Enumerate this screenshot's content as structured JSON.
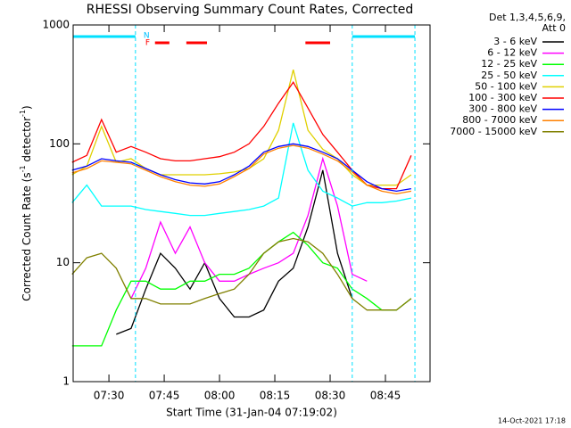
{
  "chart_data": {
    "type": "line",
    "title": "RHESSI Observing Summary Count Rates, Corrected",
    "ylabel": [
      "Corrected Count Rate (s",
      "-1",
      " detector",
      "-1",
      ")"
    ],
    "xlabel": "Start Time (31-Jan-04 07:19:02)",
    "footer": "14-Oct-2021 17:18",
    "legend_title": [
      "Det 1,3,4,5,6,9,",
      "Att 0"
    ],
    "log_y": true,
    "ylim": [
      1,
      1000
    ],
    "yticks": [
      1,
      10,
      100,
      1000
    ],
    "xlim": [
      20.3,
      117.1
    ],
    "xticks": [
      {
        "value": 30,
        "label": "07:30"
      },
      {
        "value": 45,
        "label": "07:45"
      },
      {
        "value": 60,
        "label": "08:00"
      },
      {
        "value": 75,
        "label": "08:15"
      },
      {
        "value": 90,
        "label": "08:30"
      },
      {
        "value": 105,
        "label": "08:45"
      }
    ],
    "night_label": "N",
    "flare_label": "F",
    "night_intervals": [
      [
        20.3,
        37.2
      ],
      [
        96,
        113
      ]
    ],
    "flare_intervals": [
      [
        42.5,
        46.4
      ],
      [
        51,
        56.6
      ],
      [
        83.3,
        90
      ]
    ],
    "x": [
      20,
      24,
      28,
      32,
      36,
      40,
      44,
      48,
      52,
      56,
      60,
      64,
      68,
      72,
      76,
      80,
      84,
      88,
      92,
      96,
      100,
      104,
      108,
      112
    ],
    "series": [
      {
        "name": "3 - 6 keV",
        "color": "#000000",
        "values": [
          null,
          null,
          null,
          2.5,
          2.8,
          6,
          12,
          9,
          6,
          10,
          5,
          3.5,
          3.5,
          4,
          7,
          9,
          20,
          60,
          12,
          5,
          null,
          null,
          null,
          null
        ]
      },
      {
        "name": "6 - 12 keV",
        "color": "#ff00ff",
        "values": [
          null,
          null,
          null,
          null,
          5,
          9,
          22,
          12,
          20,
          10,
          7,
          7,
          8,
          9,
          10,
          12,
          25,
          75,
          30,
          8,
          7,
          null,
          null,
          null
        ]
      },
      {
        "name": "12 - 25 keV",
        "color": "#00ff00",
        "values": [
          2,
          2,
          2,
          4,
          7,
          7,
          6,
          6,
          7,
          7,
          8,
          8,
          9,
          12,
          15,
          18,
          14,
          10,
          9,
          6,
          5,
          4,
          4,
          5
        ]
      },
      {
        "name": "25 - 50 keV",
        "color": "#00ffff",
        "values": [
          32,
          45,
          30,
          30,
          30,
          28,
          27,
          26,
          25,
          25,
          26,
          27,
          28,
          30,
          35,
          150,
          60,
          40,
          35,
          30,
          32,
          32,
          33,
          35
        ]
      },
      {
        "name": "50 - 100 keV",
        "color": "#e0d000",
        "values": [
          55,
          65,
          140,
          70,
          75,
          62,
          55,
          55,
          55,
          55,
          56,
          58,
          62,
          75,
          130,
          420,
          130,
          90,
          75,
          55,
          45,
          45,
          45,
          55
        ]
      },
      {
        "name": "100 - 300 keV",
        "color": "#ff0000",
        "values": [
          70,
          80,
          160,
          85,
          95,
          85,
          75,
          72,
          72,
          75,
          78,
          85,
          100,
          140,
          220,
          330,
          200,
          120,
          85,
          60,
          45,
          42,
          42,
          80
        ]
      },
      {
        "name": "300 - 800 keV",
        "color": "#0000ff",
        "values": [
          60,
          65,
          75,
          72,
          70,
          62,
          55,
          50,
          47,
          46,
          48,
          55,
          65,
          85,
          95,
          100,
          95,
          85,
          75,
          60,
          48,
          42,
          40,
          42
        ]
      },
      {
        "name": "800 - 7000 keV",
        "color": "#ff8000",
        "values": [
          57,
          62,
          72,
          70,
          68,
          60,
          53,
          48,
          45,
          44,
          46,
          53,
          62,
          82,
          92,
          97,
          92,
          82,
          72,
          58,
          45,
          40,
          38,
          40
        ]
      },
      {
        "name": "7000 - 15000 keV",
        "color": "#808000",
        "values": [
          8,
          11,
          12,
          9,
          5,
          5,
          4.5,
          4.5,
          4.5,
          5,
          5.5,
          6,
          8,
          12,
          15,
          16,
          15,
          12,
          8,
          5,
          4,
          4,
          4,
          5
        ]
      }
    ]
  }
}
